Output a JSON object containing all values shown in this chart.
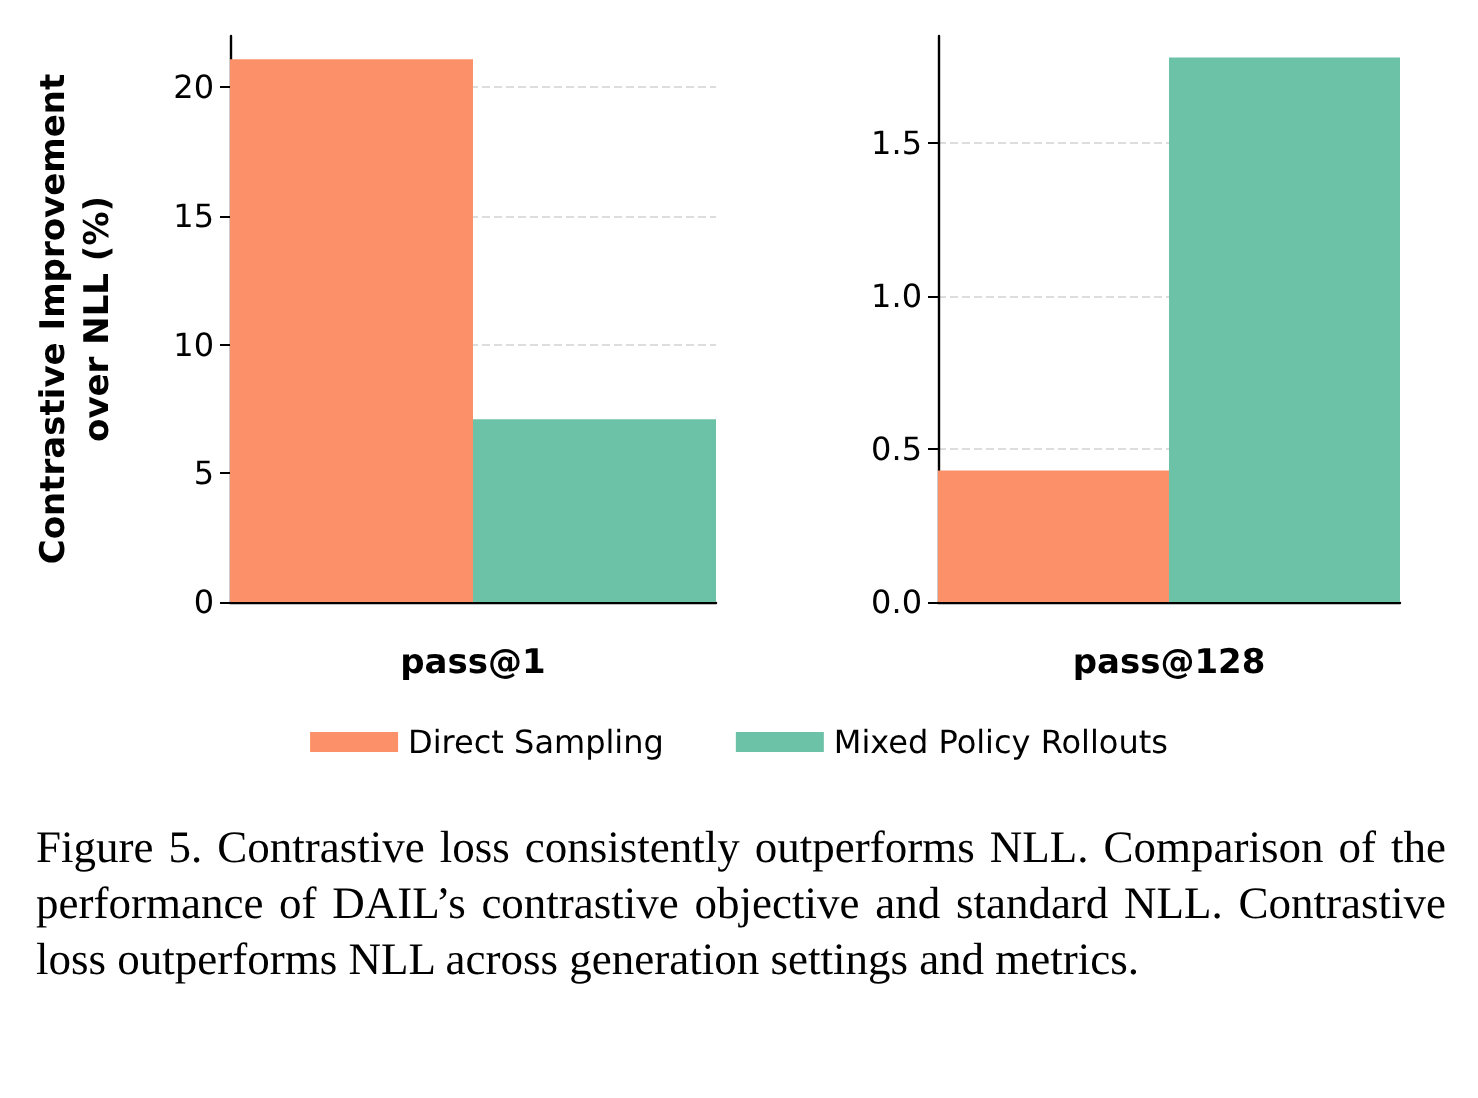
{
  "chart_data": [
    {
      "type": "bar",
      "ylabel": "Contrastive Improvement\nover NLL (%)",
      "xlabel": "pass@1",
      "categories": [
        null,
        null
      ],
      "legend": "bottom",
      "grid": "y",
      "ylim": [
        0,
        22
      ],
      "yticks": [
        0,
        5,
        10,
        15,
        20
      ],
      "series": [
        {
          "name": "Direct Sampling",
          "color": "#fc9068",
          "values": [
            21.1,
            null
          ]
        },
        {
          "name": "Mixed Policy Rollouts",
          "color": "#6cc2a6",
          "values": [
            null,
            7.1
          ]
        }
      ],
      "annotations": [
        "Figure 5. Contrastive loss consistently outperforms NLL. Comparison of the performance of DAIL’s contrastive objective and standard NLL. Contrastive loss outperforms NLL across generation settings and metrics."
      ]
    },
    {
      "type": "bar",
      "xlabel": "pass@128",
      "categories": [
        null,
        null
      ],
      "grid": "y",
      "ylim": [
        0,
        1.85
      ],
      "yticks": [
        {
          "value": 0,
          "label": "0.0"
        },
        0.5,
        {
          "value": 1,
          "label": "1.0"
        },
        1.5
      ],
      "series": [
        {
          "name": "Direct Sampling",
          "color": "#fc9068",
          "values": [
            0.43,
            null
          ]
        },
        {
          "name": "Mixed Policy Rollouts",
          "color": "#6cc2a6",
          "values": [
            null,
            1.78
          ]
        }
      ]
    }
  ]
}
